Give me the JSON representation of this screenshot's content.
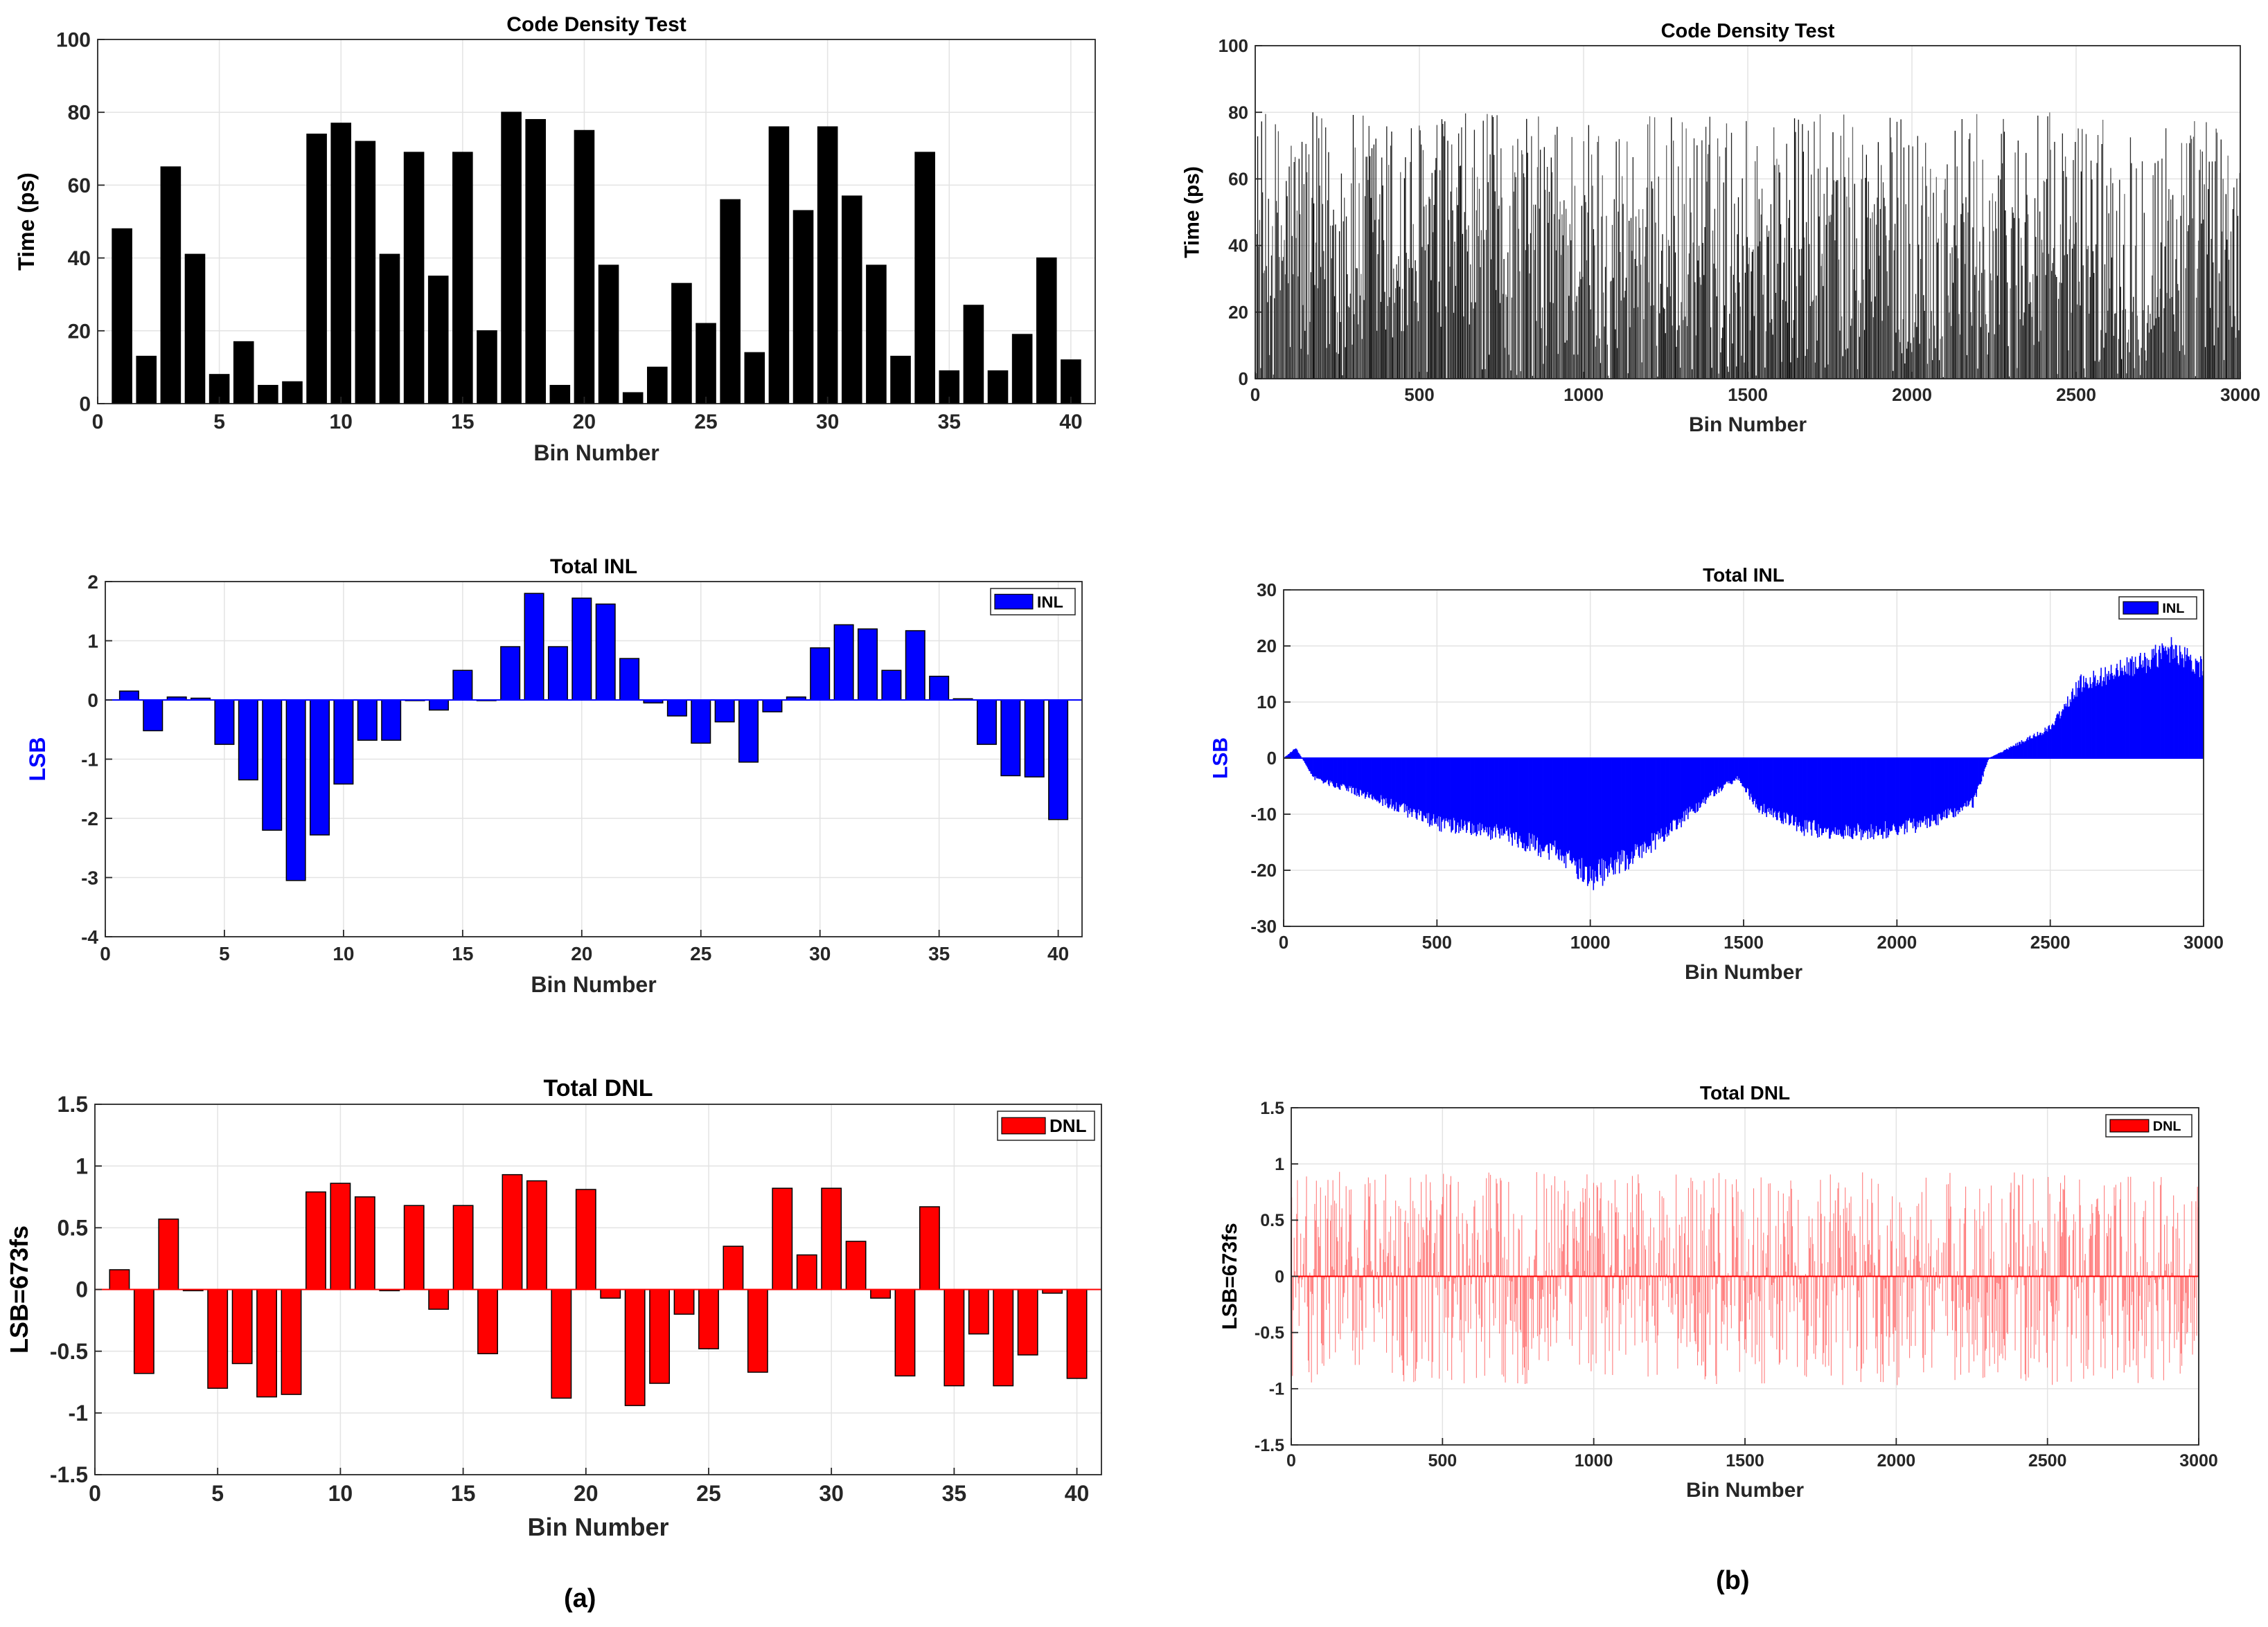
{
  "captions": {
    "a": "(a)",
    "b": "(b)"
  },
  "chart_data": [
    {
      "id": "cd_a",
      "type": "bar",
      "panel": "a",
      "title": "Code Density Test",
      "xlabel": "Bin Number",
      "ylabel": "Time (ps)",
      "xlim": [
        0,
        41
      ],
      "ylim": [
        0,
        100
      ],
      "xticks": [
        0,
        5,
        10,
        15,
        20,
        25,
        30,
        35,
        40
      ],
      "yticks": [
        0,
        20,
        40,
        60,
        80,
        100
      ],
      "ytick_labels": [
        "0",
        "20",
        "40",
        "60",
        "80",
        "100"
      ],
      "grid": true,
      "bar_color": "#000000",
      "categories": [
        1,
        2,
        3,
        4,
        5,
        6,
        7,
        8,
        9,
        10,
        11,
        12,
        13,
        14,
        15,
        16,
        17,
        18,
        19,
        20,
        21,
        22,
        23,
        24,
        25,
        26,
        27,
        28,
        29,
        30,
        31,
        32,
        33,
        34,
        35,
        36,
        37,
        38,
        39,
        40
      ],
      "values": [
        48,
        13,
        65,
        41,
        8,
        17,
        5,
        6,
        74,
        77,
        72,
        41,
        69,
        35,
        69,
        20,
        80,
        78,
        5,
        75,
        38,
        3,
        10,
        33,
        22,
        56,
        14,
        76,
        53,
        76,
        57,
        38,
        13,
        69,
        9,
        27,
        9,
        19,
        40,
        12
      ]
    },
    {
      "id": "cd_b",
      "type": "bar",
      "panel": "b",
      "title": "Code Density Test",
      "xlabel": "Bin Number",
      "ylabel": "Time (ps)",
      "xlim": [
        0,
        3000
      ],
      "ylim": [
        0,
        100
      ],
      "xticks": [
        0,
        500,
        1000,
        1500,
        2000,
        2500,
        3000
      ],
      "yticks": [
        0,
        20,
        40,
        60,
        80,
        100
      ],
      "ytick_labels": [
        "0",
        "20",
        "40",
        "60",
        "80",
        "100"
      ],
      "grid": true,
      "bar_color": "#000000",
      "n_bins": 3000,
      "value_range": [
        0,
        80
      ],
      "note": "dense bars, values spread uniformly between 0 and ~80 ps"
    },
    {
      "id": "inl_a",
      "type": "bar",
      "panel": "a",
      "title": "Total INL",
      "xlabel": "Bin Number",
      "ylabel": "LSB",
      "xlim": [
        0,
        41
      ],
      "ylim": [
        -4,
        2
      ],
      "xticks": [
        0,
        5,
        10,
        15,
        20,
        25,
        30,
        35,
        40
      ],
      "yticks": [
        -4,
        -3,
        -2,
        -1,
        0,
        1,
        2
      ],
      "ytick_labels": [
        "-4",
        "-3",
        "-2",
        "-1",
        "0",
        "1",
        "2"
      ],
      "grid": true,
      "bar_color": "#0000ff",
      "legend": [
        "INL"
      ],
      "legend_position": "top-right",
      "categories": [
        1,
        2,
        3,
        4,
        5,
        6,
        7,
        8,
        9,
        10,
        11,
        12,
        13,
        14,
        15,
        16,
        17,
        18,
        19,
        20,
        21,
        22,
        23,
        24,
        25,
        26,
        27,
        28,
        29,
        30,
        31,
        32,
        33,
        34,
        35,
        36,
        37,
        38,
        39,
        40
      ],
      "values": [
        0.15,
        -0.52,
        0.05,
        0.03,
        -0.75,
        -1.35,
        -2.2,
        -3.05,
        -2.28,
        -1.42,
        -0.68,
        -0.68,
        0.0,
        -0.17,
        0.5,
        0.0,
        0.9,
        1.8,
        0.9,
        1.72,
        1.62,
        0.7,
        -0.05,
        -0.27,
        -0.73,
        -0.37,
        -1.05,
        -0.2,
        0.05,
        0.88,
        1.27,
        1.2,
        0.5,
        1.17,
        0.4,
        0.02,
        -0.75,
        -1.28,
        -1.3,
        -2.02
      ]
    },
    {
      "id": "inl_b",
      "type": "bar",
      "panel": "b",
      "title": "Total INL",
      "xlabel": "Bin Number",
      "ylabel": "LSB",
      "xlim": [
        0,
        3000
      ],
      "ylim": [
        -30,
        30
      ],
      "xticks": [
        0,
        500,
        1000,
        1500,
        2000,
        2500,
        3000
      ],
      "yticks": [
        -30,
        -20,
        -10,
        0,
        10,
        20,
        30
      ],
      "ytick_labels": [
        "-30",
        "-20",
        "-10",
        "0",
        "10",
        "20",
        "30"
      ],
      "grid": true,
      "bar_color": "#0000ff",
      "legend": [
        "INL"
      ],
      "legend_position": "top-right",
      "envelope": {
        "x": [
          0,
          40,
          100,
          300,
          500,
          700,
          900,
          1000,
          1100,
          1250,
          1400,
          1480,
          1550,
          1700,
          1900,
          2100,
          2250,
          2300,
          2400,
          2500,
          2600,
          2700,
          2800,
          2900,
          3000
        ],
        "y": [
          0,
          2,
          -4,
          -8,
          -13,
          -15,
          -19,
          -24,
          -21,
          -15,
          -7,
          -4,
          -10,
          -14,
          -15,
          -13,
          -9,
          0,
          3,
          6,
          15,
          17,
          19,
          22,
          18
        ]
      }
    },
    {
      "id": "dnl_a",
      "type": "bar",
      "panel": "a",
      "title": "Total DNL",
      "xlabel": "Bin Number",
      "ylabel": "LSB=673fs",
      "xlim": [
        0,
        41
      ],
      "ylim": [
        -1.5,
        1.5
      ],
      "xticks": [
        0,
        5,
        10,
        15,
        20,
        25,
        30,
        35,
        40
      ],
      "yticks": [
        -1.5,
        -1,
        -0.5,
        0,
        0.5,
        1,
        1.5
      ],
      "ytick_labels": [
        "-1.5",
        "-1",
        "-0.5",
        "0",
        "0.5",
        "1",
        "1.5"
      ],
      "grid": true,
      "bar_color": "#ff0000",
      "legend": [
        "DNL"
      ],
      "legend_position": "top-right",
      "categories": [
        1,
        2,
        3,
        4,
        5,
        6,
        7,
        8,
        9,
        10,
        11,
        12,
        13,
        14,
        15,
        16,
        17,
        18,
        19,
        20,
        21,
        22,
        23,
        24,
        25,
        26,
        27,
        28,
        29,
        30,
        31,
        32,
        33,
        34,
        35,
        36,
        37,
        38,
        39,
        40
      ],
      "values": [
        0.16,
        -0.68,
        0.57,
        -0.01,
        -0.8,
        -0.6,
        -0.87,
        -0.85,
        0.79,
        0.86,
        0.75,
        -0.01,
        0.68,
        -0.16,
        0.68,
        -0.52,
        0.93,
        0.88,
        -0.88,
        0.81,
        -0.07,
        -0.94,
        -0.76,
        -0.2,
        -0.48,
        0.35,
        -0.67,
        0.82,
        0.28,
        0.82,
        0.39,
        -0.07,
        -0.7,
        0.67,
        -0.78,
        -0.36,
        -0.78,
        -0.53,
        -0.03,
        -0.72
      ]
    },
    {
      "id": "dnl_b",
      "type": "bar",
      "panel": "b",
      "title": "Total DNL",
      "xlabel": "Bin Number",
      "ylabel": "LSB=673fs",
      "xlim": [
        0,
        3000
      ],
      "ylim": [
        -1.5,
        1.5
      ],
      "xticks": [
        0,
        500,
        1000,
        1500,
        2000,
        2500,
        3000
      ],
      "yticks": [
        -1.5,
        -1,
        -0.5,
        0,
        0.5,
        1,
        1.5
      ],
      "ytick_labels": [
        "-1.5",
        "-1",
        "-0.5",
        "0",
        "0.5",
        "1",
        "1.5"
      ],
      "grid": true,
      "bar_color": "#ff0000",
      "legend": [
        "DNL"
      ],
      "legend_position": "top-right",
      "n_bins": 3000,
      "value_range": [
        -0.97,
        0.93
      ],
      "note": "dense thin lines, values spread between about -1 and 0.9"
    }
  ]
}
